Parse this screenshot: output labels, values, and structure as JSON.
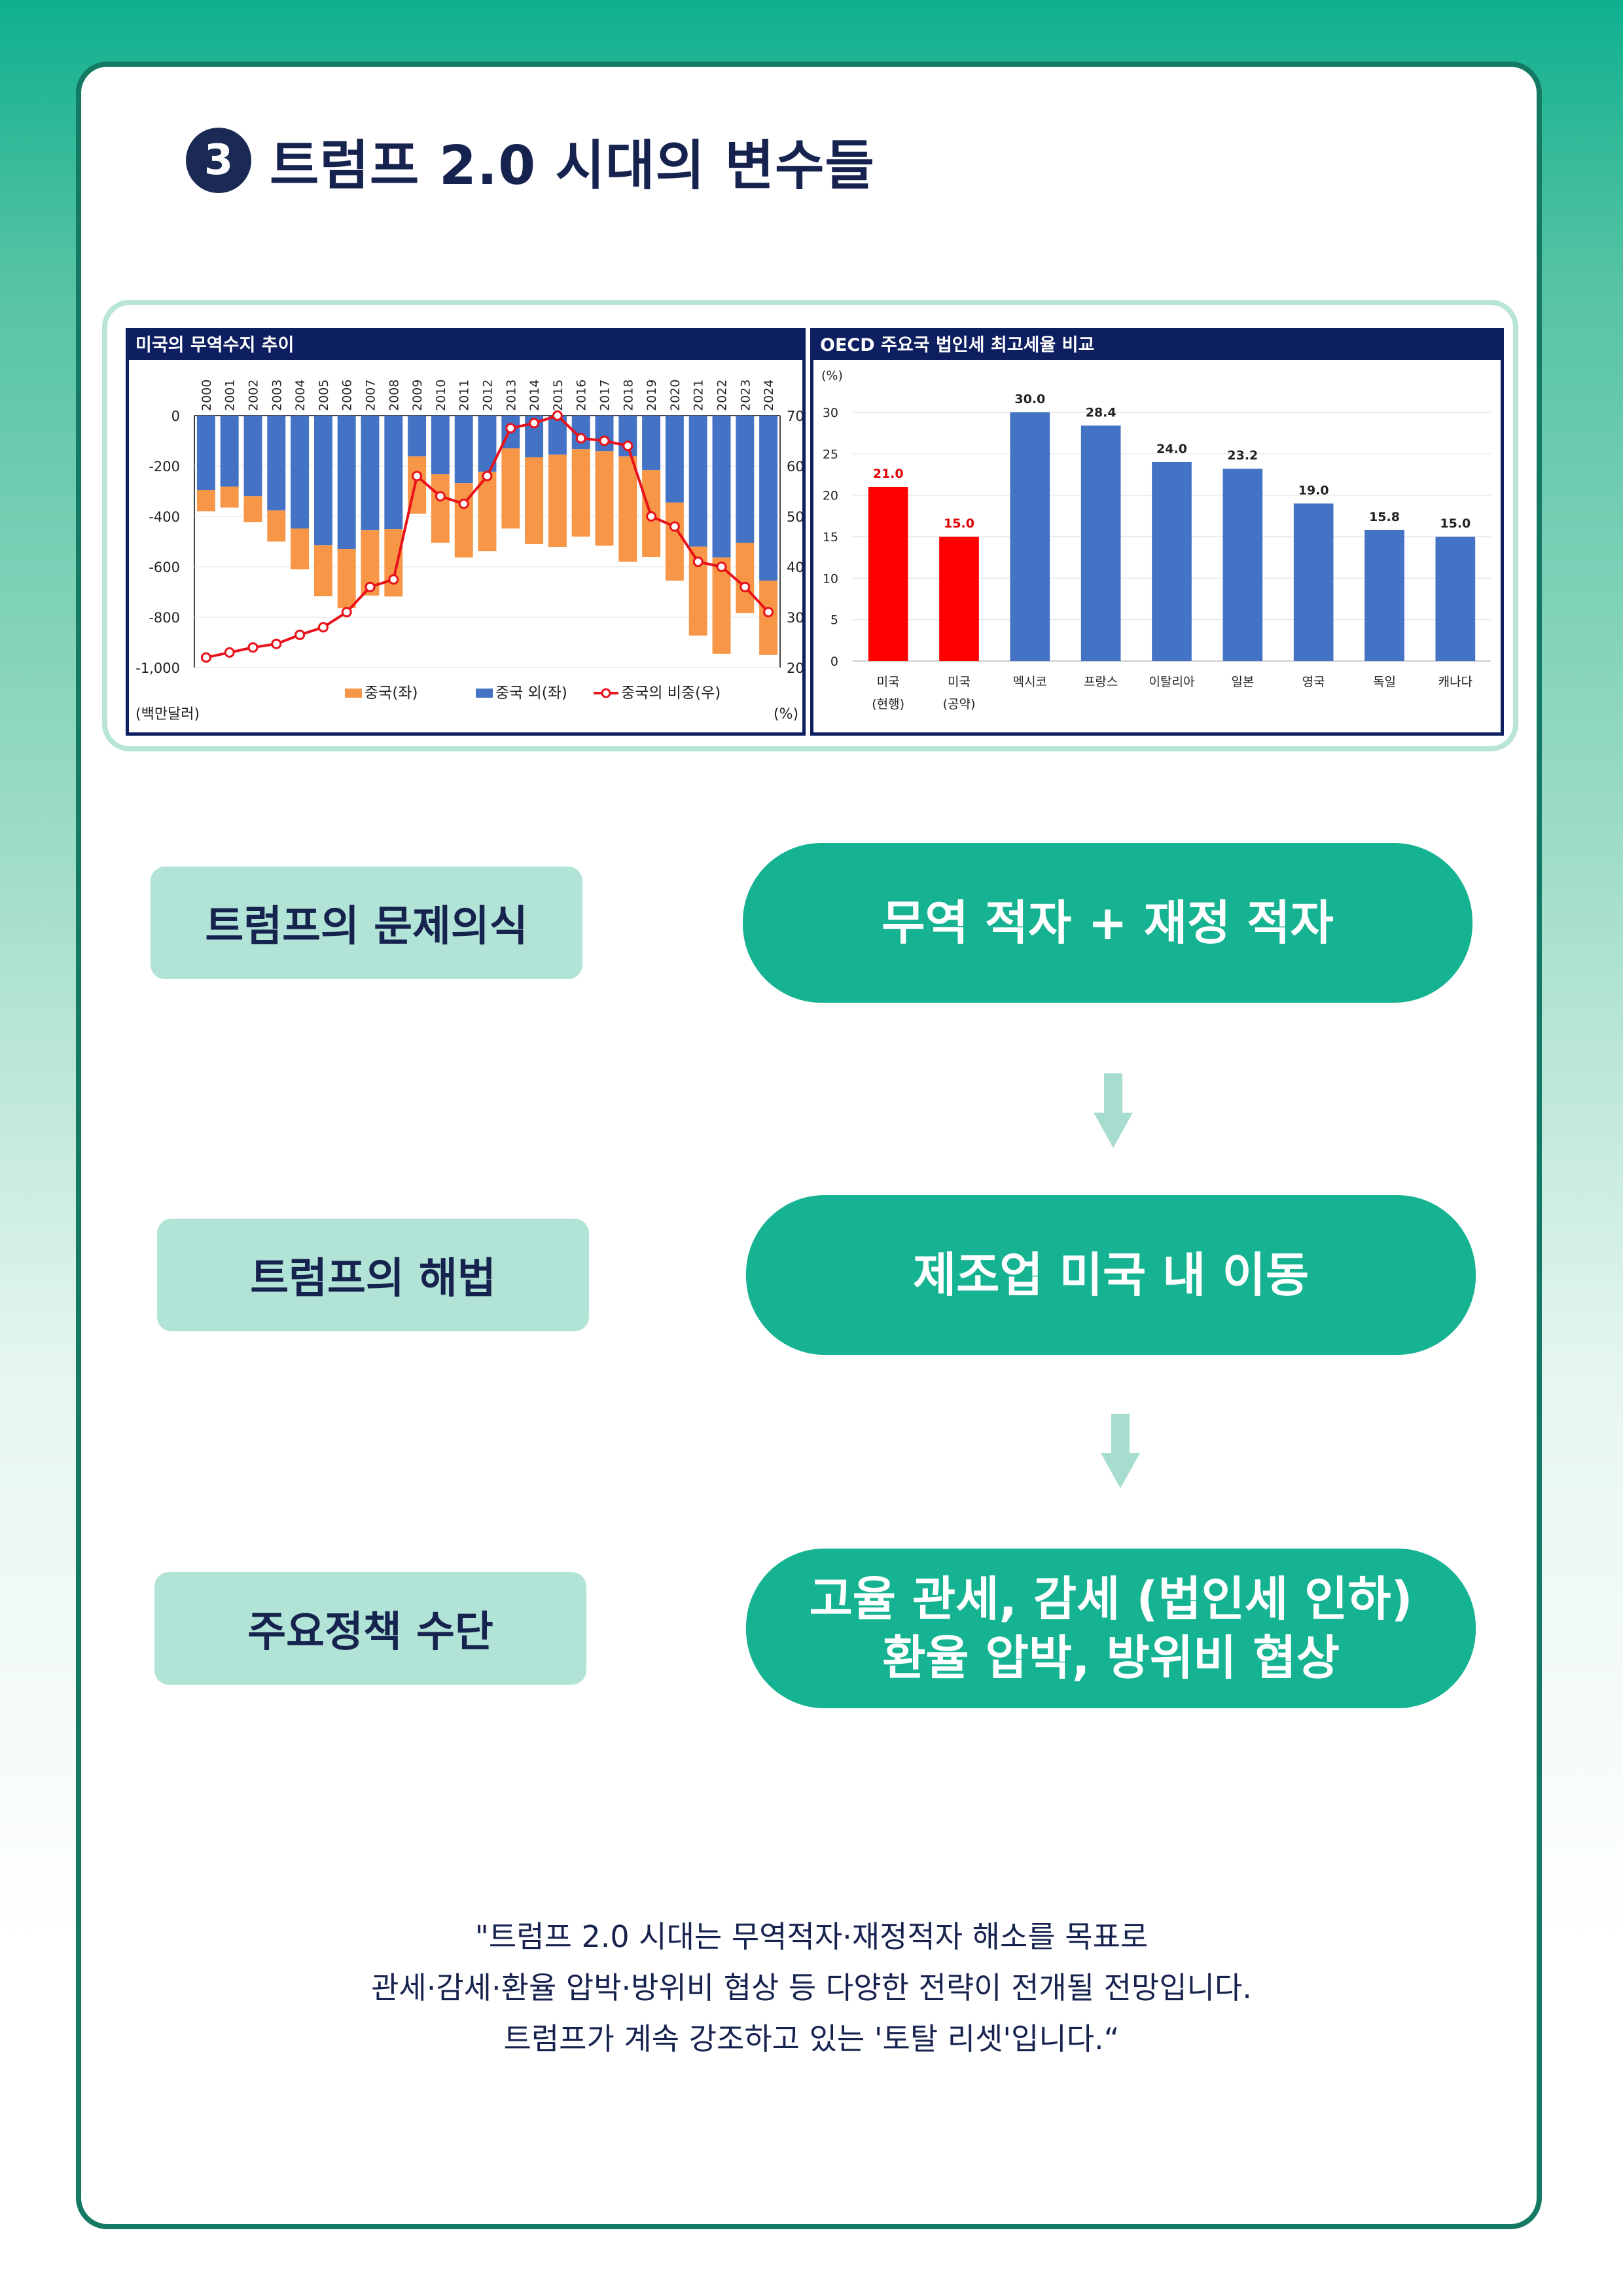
{
  "title": {
    "number": "3",
    "text": "트럼프 2.0 시대의 변수들"
  },
  "colors": {
    "navy": "#0d1f60",
    "teal": "#16b392",
    "mint": "#b1e3d6",
    "orange": "#f79646",
    "blue": "#4472c4",
    "red": "#ff0000",
    "line_red": "#e8121b"
  },
  "chart_data": [
    {
      "type": "bar",
      "title": "미국의 무역수지 추이",
      "stacked": true,
      "categories": [
        "2000",
        "2001",
        "2002",
        "2003",
        "2004",
        "2005",
        "2006",
        "2007",
        "2008",
        "2009",
        "2010",
        "2011",
        "2012",
        "2013",
        "2014",
        "2015",
        "2016",
        "2017",
        "2018",
        "2019",
        "2020",
        "2021",
        "2022",
        "2023",
        "2024"
      ],
      "series": [
        {
          "name": "중국(좌)",
          "color": "#f79646",
          "values": [
            -84,
            -83,
            -103,
            -124,
            -162,
            -202,
            -234,
            -259,
            -268,
            -227,
            -273,
            -295,
            -315,
            -318,
            -344,
            -367,
            -347,
            -375,
            -418,
            -345,
            -310,
            -353,
            -382,
            -279,
            -295
          ]
        },
        {
          "name": "중국 외(좌)",
          "color": "#4472c4",
          "values": [
            -296,
            -282,
            -320,
            -376,
            -448,
            -515,
            -530,
            -455,
            -450,
            -162,
            -232,
            -268,
            -223,
            -130,
            -165,
            -155,
            -133,
            -141,
            -162,
            -216,
            -345,
            -520,
            -563,
            -505,
            -655
          ]
        }
      ],
      "line": {
        "name": "중국의 비중(우)",
        "color": "#e8121b",
        "values": [
          22,
          23,
          24,
          24.7,
          26.5,
          28,
          31,
          36,
          37.5,
          58,
          54,
          52.5,
          58,
          67.5,
          68.5,
          70,
          65.5,
          65,
          64,
          50,
          48,
          41,
          40,
          36,
          31
        ]
      },
      "y_left": {
        "min": -1000,
        "max": 0,
        "ticks": [
          "0",
          "-200",
          "-400",
          "-600",
          "-800",
          "-1,000"
        ],
        "unit": "(백만달러)"
      },
      "y_right": {
        "min": 20,
        "max": 70,
        "ticks": [
          "70",
          "60",
          "50",
          "40",
          "30",
          "20"
        ],
        "unit": "(%)"
      },
      "legend": "bottom"
    },
    {
      "type": "bar",
      "title": "OECD 주요국 법인세 최고세율 비교",
      "categories": [
        "미국",
        "미국",
        "멕시코",
        "프랑스",
        "이탈리아",
        "일본",
        "영국",
        "독일",
        "캐나다"
      ],
      "sublabels": [
        "(현행)",
        "(공약)",
        "",
        "",
        "",
        "",
        "",
        "",
        ""
      ],
      "values": [
        21.0,
        15.0,
        30.0,
        28.4,
        24.0,
        23.2,
        19.0,
        15.8,
        15.0
      ],
      "value_labels": [
        "21.0",
        "15.0",
        "30.0",
        "28.4",
        "24.0",
        "23.2",
        "19.0",
        "15.8",
        "15.0"
      ],
      "bar_colors": [
        "#ff0000",
        "#ff0000",
        "#4472c4",
        "#4472c4",
        "#4472c4",
        "#4472c4",
        "#4472c4",
        "#4472c4",
        "#4472c4"
      ],
      "ylim": [
        0,
        30
      ],
      "y_ticks": [
        "30",
        "25",
        "20",
        "15",
        "10",
        "5",
        "0"
      ],
      "unit": "(%)"
    }
  ],
  "flow": [
    {
      "label": "트럼프의 문제의식",
      "content": [
        "무역 적자 + 재정 적자"
      ]
    },
    {
      "label": "트럼프의 해법",
      "content": [
        "제조업 미국 내 이동"
      ]
    },
    {
      "label": "주요정책 수단",
      "content": [
        "고율 관세, 감세 (법인세 인하)",
        "환율 압박, 방위비 협상"
      ]
    }
  ],
  "quote": [
    "\"트럼프 2.0 시대는 무역적자·재정적자 해소를 목표로",
    "관세·감세·환율 압박·방위비 협상 등 다양한 전략이 전개될 전망입니다.",
    "트럼프가 계속 강조하고 있는 '토탈 리셋'입니다.“"
  ]
}
